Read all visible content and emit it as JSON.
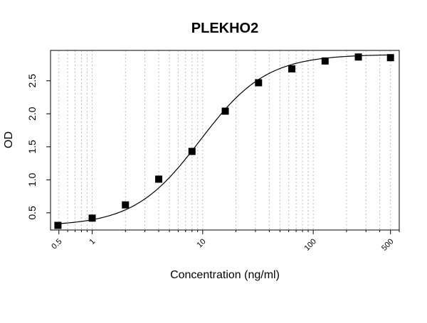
{
  "chart_data": {
    "type": "scatter",
    "title": "PLEKHO2",
    "xlabel": "Concentration (ng/ml)",
    "ylabel": "OD",
    "x_scale": "log",
    "xlim": [
      0.42,
      600
    ],
    "ylim": [
      0.24,
      2.96
    ],
    "grid": true,
    "x_ticks": [
      {
        "value": 0.5,
        "label": "0.5"
      },
      {
        "value": 1,
        "label": "1"
      },
      {
        "value": 10,
        "label": "10"
      },
      {
        "value": 100,
        "label": "100"
      },
      {
        "value": 500,
        "label": "500"
      }
    ],
    "y_ticks": [
      {
        "value": 0.5,
        "label": "0.5"
      },
      {
        "value": 1.0,
        "label": "1.0"
      },
      {
        "value": 1.5,
        "label": "1.5"
      },
      {
        "value": 2.0,
        "label": "2.0"
      },
      {
        "value": 2.5,
        "label": "2.5"
      }
    ],
    "series": [
      {
        "x": [
          0.49,
          1,
          2,
          4,
          8,
          16,
          32,
          64,
          128,
          256,
          500
        ],
        "y": [
          0.31,
          0.42,
          0.62,
          1.01,
          1.43,
          2.04,
          2.47,
          2.68,
          2.8,
          2.86,
          2.85
        ]
      }
    ],
    "fit_curve": {
      "model": "4PL",
      "bottom": 0.3,
      "top": 2.9,
      "ec50": 9.5,
      "hill": 1.45
    }
  }
}
